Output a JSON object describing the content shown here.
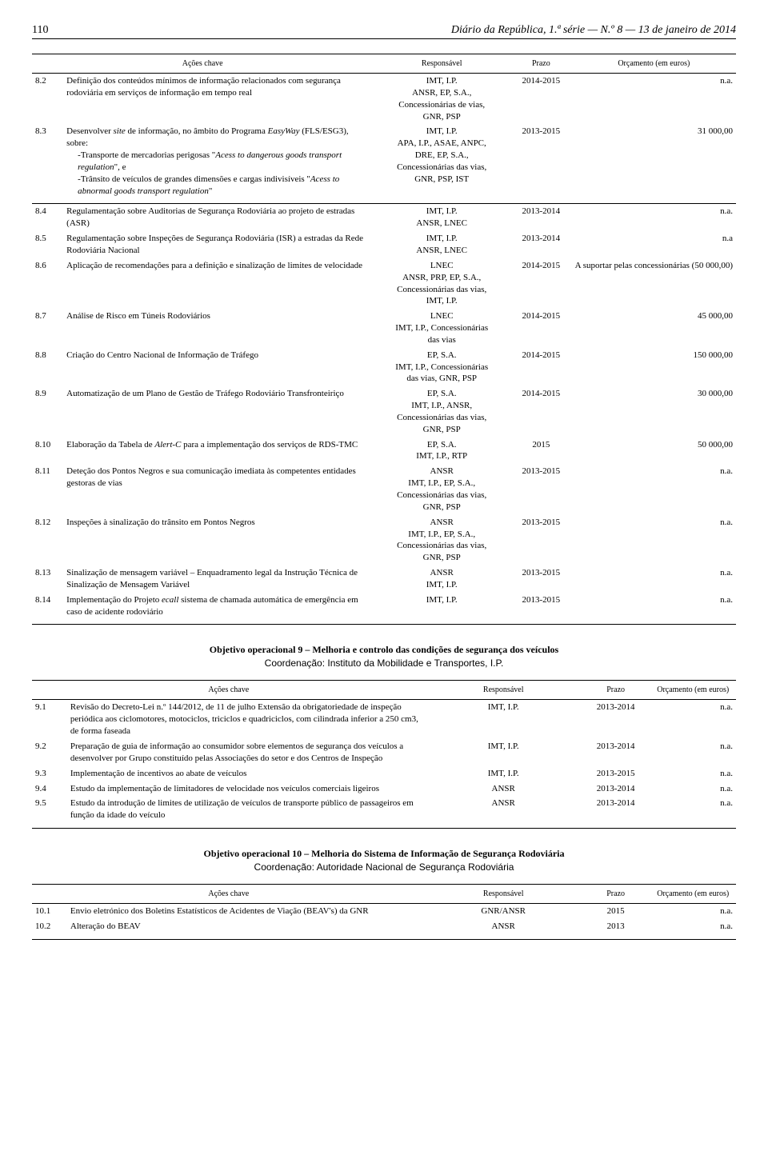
{
  "header": {
    "page_number": "110",
    "journal": "Diário da República, 1.ª série — N.º 8 — 13 de janeiro de 2014"
  },
  "columns": {
    "action": "Ações chave",
    "resp": "Responsável",
    "period": "Prazo",
    "budget": "Orçamento (em euros)",
    "budget_short": "Orçamento (em euros)"
  },
  "table1a": [
    {
      "num": "8.2",
      "action": "Definição dos conteúdos mínimos de informação relacionados com segurança rodoviária em serviços de informação em tempo real",
      "resp": "IMT, I.P.\nANSR, EP, S.A.,\nConcessionárias de vias,\nGNR, PSP",
      "period": "2014-2015",
      "budget": "n.a."
    },
    {
      "num": "8.3",
      "action_html": "Desenvolver <span class=\"italic\">site</span> de informação, no âmbito do Programa <span class=\"italic\">EasyWay</span> (FLS/ESG3), sobre:<span class=\"indent\">-Transporte de mercadorias perigosas \"<span class=\"italic\">Acess to dangerous goods transport regulation</span>\", e</span><span class=\"indent\">-Trânsito de veículos de grandes dimensões e cargas indivisíveis \"<span class=\"italic\">Acess to abnormal goods transport regulation</span>\"</span>",
      "resp": "IMT, I.P.\nAPA, I.P., ASAE, ANPC,\nDRE, EP, S.A.,\nConcessionárias das vias,\nGNR, PSP, IST",
      "period": "2013-2015",
      "budget": "31 000,00"
    }
  ],
  "table1b": [
    {
      "num": "8.4",
      "action": "Regulamentação sobre Auditorias de Segurança Rodoviária ao projeto de estradas (ASR)",
      "resp": "IMT, I.P.\nANSR, LNEC",
      "period": "2013-2014",
      "budget": "n.a."
    },
    {
      "num": "8.5",
      "action": "Regulamentação sobre Inspeções de Segurança Rodoviária (ISR) a estradas da Rede Rodoviária Nacional",
      "resp": "IMT, I.P.\nANSR, LNEC",
      "period": "2013-2014",
      "budget": "n.a"
    },
    {
      "num": "8.6",
      "action": "Aplicação de recomendações para a definição e sinalização de limites de velocidade",
      "resp": "LNEC\nANSR, PRP, EP, S.A.,\nConcessionárias das vias,\nIMT, I.P.",
      "period": "2014-2015",
      "budget": "A suportar pelas concessionárias (50 000,00)"
    },
    {
      "num": "8.7",
      "action": "Análise de Risco em Túneis Rodoviários",
      "resp": "LNEC\nIMT, I.P., Concessionárias\ndas vias",
      "period": "2014-2015",
      "budget": "45 000,00"
    },
    {
      "num": "8.8",
      "action": "Criação do Centro Nacional de Informação de Tráfego",
      "resp": "EP, S.A.\nIMT, I.P., Concessionárias\ndas vias, GNR, PSP",
      "period": "2014-2015",
      "budget": "150 000,00"
    },
    {
      "num": "8.9",
      "action": "Automatização de um Plano de Gestão de Tráfego Rodoviário Transfronteiriço",
      "resp": "EP, S.A.\nIMT, I.P., ANSR,\nConcessionárias das vias,\nGNR, PSP",
      "period": "2014-2015",
      "budget": "30 000,00"
    },
    {
      "num": "8.10",
      "action_html": "Elaboração da Tabela de <span class=\"italic\">Alert-C</span> para a implementação dos serviços de RDS-TMC",
      "resp": "EP, S.A.\nIMT, I.P., RTP",
      "period": "2015",
      "budget": "50 000,00"
    },
    {
      "num": "8.11",
      "action": "Deteção dos Pontos Negros e sua comunicação imediata às competentes entidades gestoras de vias",
      "resp": "ANSR\nIMT, I.P., EP, S.A.,\nConcessionárias das vias,\nGNR, PSP",
      "period": "2013-2015",
      "budget": "n.a."
    },
    {
      "num": "8.12",
      "action": "Inspeções à sinalização do trânsito em Pontos Negros",
      "resp": "ANSR\nIMT, I.P., EP, S.A.,\nConcessionárias das vias,\nGNR, PSP",
      "period": "2013-2015",
      "budget": "n.a."
    },
    {
      "num": "8.13",
      "action": "Sinalização de mensagem variável – Enquadramento legal da Instrução Técnica de Sinalização de Mensagem Variável",
      "resp": "ANSR\nIMT, I.P.",
      "period": "2013-2015",
      "budget": "n.a."
    },
    {
      "num": "8.14",
      "action_html": "Implementação do Projeto <span class=\"italic\">ecall</span> sistema de chamada automática de emergência em caso de acidente rodoviário",
      "resp": "IMT, I.P.",
      "period": "2013-2015",
      "budget": "n.a."
    }
  ],
  "obj9": {
    "title": "Objetivo operacional 9 – Melhoria e controlo das condições de segurança dos veículos",
    "coord": "Coordenação: Instituto da Mobilidade e Transportes, I.P."
  },
  "table9": [
    {
      "num": "9.1",
      "action": "Revisão do Decreto-Lei n.º 144/2012, de 11 de julho Extensão da obrigatoriedade de inspeção periódica aos ciclomotores, motociclos, triciclos e quadriciclos, com cilindrada inferior a 250 cm3, de forma faseada",
      "resp": "IMT, I.P.",
      "period": "2013-2014",
      "budget": "n.a."
    },
    {
      "num": "9.2",
      "action": "Preparação de guia de informação ao consumidor sobre elementos de segurança dos veículos a desenvolver por Grupo constituído pelas Associações do setor e dos Centros de Inspeção",
      "resp": "IMT, I.P.",
      "period": "2013-2014",
      "budget": "n.a."
    },
    {
      "num": "9.3",
      "action": "Implementação de incentivos ao abate de veículos",
      "resp": "IMT, I.P.",
      "period": "2013-2015",
      "budget": "n.a."
    },
    {
      "num": "9.4",
      "action": "Estudo da implementação de limitadores de velocidade nos veículos comerciais ligeiros",
      "resp": "ANSR",
      "period": "2013-2014",
      "budget": "n.a."
    },
    {
      "num": "9.5",
      "action": "Estudo da introdução de limites de utilização de veículos de transporte público de passageiros em função da idade do veículo",
      "resp": "ANSR",
      "period": "2013-2014",
      "budget": "n.a."
    }
  ],
  "obj10": {
    "title": "Objetivo operacional 10 – Melhoria do Sistema de Informação de Segurança Rodoviária",
    "coord": "Coordenação: Autoridade Nacional de Segurança Rodoviária"
  },
  "table10": [
    {
      "num": "10.1",
      "action": "Envio eletrónico dos Boletins Estatísticos de Acidentes de Viação (BEAV's) da GNR",
      "resp": "GNR/ANSR",
      "period": "2015",
      "budget": "n.a."
    },
    {
      "num": "10.2",
      "action": "Alteração do BEAV",
      "resp": "ANSR",
      "period": "2013",
      "budget": "n.a."
    }
  ]
}
